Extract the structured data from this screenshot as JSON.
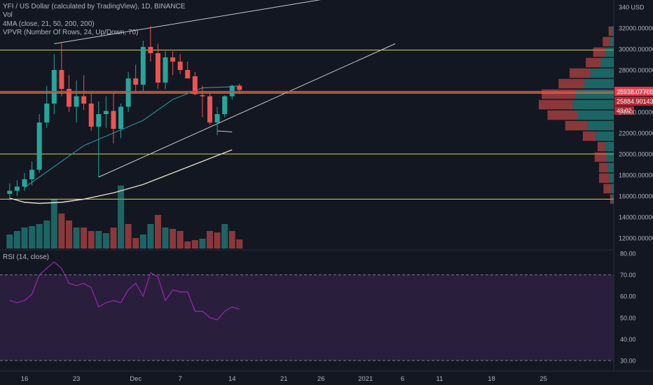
{
  "header": {
    "symbol_line": "YFI / US Dollar (calculated by TradingView), 1D, BINANCE",
    "vol_label": "Vol",
    "ma_label": "4MA (close, 21, 50, 200, 200)",
    "vpvr_label": "VPVR (Number Of Rows, 24, Up/Down, 70)",
    "rsi_label": "RSI (14, close)"
  },
  "colors": {
    "background": "#131722",
    "up": "#26a69a",
    "down": "#ef5350",
    "ma21": "#2a8c94",
    "ma50": "#e6dcc8",
    "hline": "#d6d14a",
    "price_line": "#f23645",
    "trend": "#c8c8c8",
    "rsi": "#9c27b0",
    "rsi_band": "#2a1e3d",
    "axis_text": "#b2b5be"
  },
  "chart_data": [
    {
      "type": "candlestick",
      "title": "YFI / US Dollar (calculated by TradingView), 1D, BINANCE",
      "y_axis_labels": [
        "340 USD",
        "32000.00000",
        "30000.00000",
        "28000.00000",
        "26000.00000",
        "24000.00000",
        "22000.00000",
        "20000.00000",
        "18000.00000",
        "16000.00000",
        "14000.00000",
        "12000.00000"
      ],
      "y_axis_top_label": "340 USD",
      "ylim": [
        11000,
        34500
      ],
      "x_axis_labels": [
        "16",
        "23",
        "Dec",
        "7",
        "14",
        "21",
        "26",
        "2021",
        "6",
        "11",
        "18",
        "25"
      ],
      "x_axis_days": [
        0,
        7,
        15,
        21,
        28,
        35,
        40,
        46,
        51,
        56,
        63,
        70
      ],
      "candles": [
        {
          "d": -2,
          "o": 16200,
          "h": 17200,
          "l": 15600,
          "c": 16500
        },
        {
          "d": -1,
          "o": 16500,
          "h": 17500,
          "l": 16000,
          "c": 16900
        },
        {
          "d": 0,
          "o": 16900,
          "h": 18200,
          "l": 16500,
          "c": 17600
        },
        {
          "d": 1,
          "o": 17600,
          "h": 19300,
          "l": 17000,
          "c": 18500
        },
        {
          "d": 2,
          "o": 18500,
          "h": 23800,
          "l": 18200,
          "c": 23000
        },
        {
          "d": 3,
          "o": 23000,
          "h": 26500,
          "l": 22500,
          "c": 24800
        },
        {
          "d": 4,
          "o": 24800,
          "h": 29500,
          "l": 23800,
          "c": 28000
        },
        {
          "d": 5,
          "o": 28000,
          "h": 30700,
          "l": 25500,
          "c": 26200
        },
        {
          "d": 6,
          "o": 26200,
          "h": 27500,
          "l": 24000,
          "c": 24500
        },
        {
          "d": 7,
          "o": 24500,
          "h": 27000,
          "l": 23000,
          "c": 25500
        },
        {
          "d": 8,
          "o": 25500,
          "h": 27500,
          "l": 24200,
          "c": 24800
        },
        {
          "d": 9,
          "o": 24800,
          "h": 25800,
          "l": 22200,
          "c": 22600
        },
        {
          "d": 10,
          "o": 22600,
          "h": 25000,
          "l": 17800,
          "c": 23800
        },
        {
          "d": 11,
          "o": 23800,
          "h": 25500,
          "l": 22500,
          "c": 24100
        },
        {
          "d": 12,
          "o": 24100,
          "h": 25800,
          "l": 21000,
          "c": 22400
        },
        {
          "d": 13,
          "o": 22400,
          "h": 24800,
          "l": 21500,
          "c": 24500
        },
        {
          "d": 14,
          "o": 24500,
          "h": 27800,
          "l": 24000,
          "c": 27200
        },
        {
          "d": 15,
          "o": 27200,
          "h": 28500,
          "l": 25800,
          "c": 26600
        },
        {
          "d": 16,
          "o": 26600,
          "h": 30800,
          "l": 26000,
          "c": 30200
        },
        {
          "d": 17,
          "o": 30200,
          "h": 32200,
          "l": 28800,
          "c": 29600
        },
        {
          "d": 18,
          "o": 29600,
          "h": 30500,
          "l": 26200,
          "c": 26800
        },
        {
          "d": 19,
          "o": 26800,
          "h": 29800,
          "l": 26200,
          "c": 29200
        },
        {
          "d": 20,
          "o": 29200,
          "h": 29800,
          "l": 27500,
          "c": 28800
        },
        {
          "d": 21,
          "o": 28800,
          "h": 29500,
          "l": 27600,
          "c": 28000
        },
        {
          "d": 22,
          "o": 28000,
          "h": 28800,
          "l": 27200,
          "c": 27200
        },
        {
          "d": 23,
          "o": 27400,
          "h": 27800,
          "l": 25600,
          "c": 25700
        },
        {
          "d": 24,
          "o": 25600,
          "h": 26500,
          "l": 23500,
          "c": 25500
        },
        {
          "d": 25,
          "o": 25500,
          "h": 25800,
          "l": 22800,
          "c": 23000
        },
        {
          "d": 26,
          "o": 23000,
          "h": 24500,
          "l": 21800,
          "c": 23800
        },
        {
          "d": 27,
          "o": 23800,
          "h": 25600,
          "l": 23500,
          "c": 25500
        },
        {
          "d": 28,
          "o": 25500,
          "h": 26600,
          "l": 25200,
          "c": 26500
        },
        {
          "d": 29,
          "o": 26500,
          "h": 26700,
          "l": 25700,
          "c": 26100
        }
      ],
      "ma21": [
        [
          0,
          16800
        ],
        [
          4,
          18800
        ],
        [
          8,
          20800
        ],
        [
          12,
          22000
        ],
        [
          16,
          23200
        ],
        [
          20,
          25200
        ],
        [
          24,
          26300
        ],
        [
          28,
          26400
        ],
        [
          29,
          26500
        ]
      ],
      "ma50": [
        [
          -2,
          15800
        ],
        [
          0,
          15400
        ],
        [
          2,
          15300
        ],
        [
          5,
          15400
        ],
        [
          8,
          15700
        ],
        [
          12,
          16300
        ],
        [
          16,
          17100
        ],
        [
          20,
          18200
        ],
        [
          24,
          19300
        ],
        [
          28,
          20400
        ]
      ],
      "horizontal_lines": [
        29900,
        25800,
        20000,
        15700
      ],
      "trendlines": [
        [
          [
            4,
            30500
          ],
          [
            40,
            34700
          ]
        ],
        [
          [
            10,
            17800
          ],
          [
            50,
            30500
          ]
        ],
        [
          [
            26,
            22200
          ],
          [
            28,
            22100
          ]
        ]
      ],
      "current_price": 25938.07705,
      "current_price_label": "25938.07705",
      "marker_price_label": "25884.90143",
      "countdown_label": "43:02",
      "volume": [
        {
          "d": -2,
          "v": 2,
          "dir": "up"
        },
        {
          "d": -1,
          "v": 2.5,
          "dir": "up"
        },
        {
          "d": 0,
          "v": 3,
          "dir": "up"
        },
        {
          "d": 1,
          "v": 3.2,
          "dir": "up"
        },
        {
          "d": 2,
          "v": 3.5,
          "dir": "up"
        },
        {
          "d": 3,
          "v": 4,
          "dir": "up"
        },
        {
          "d": 4,
          "v": 7,
          "dir": "up"
        },
        {
          "d": 5,
          "v": 5,
          "dir": "down"
        },
        {
          "d": 6,
          "v": 4,
          "dir": "down"
        },
        {
          "d": 7,
          "v": 3,
          "dir": "up"
        },
        {
          "d": 8,
          "v": 3,
          "dir": "down"
        },
        {
          "d": 9,
          "v": 2.5,
          "dir": "down"
        },
        {
          "d": 10,
          "v": 2.5,
          "dir": "up"
        },
        {
          "d": 11,
          "v": 2.2,
          "dir": "up"
        },
        {
          "d": 12,
          "v": 3,
          "dir": "down"
        },
        {
          "d": 13,
          "v": 9,
          "dir": "up"
        },
        {
          "d": 14,
          "v": 3.5,
          "dir": "down"
        },
        {
          "d": 15,
          "v": 1.5,
          "dir": "down"
        },
        {
          "d": 16,
          "v": 2,
          "dir": "up"
        },
        {
          "d": 17,
          "v": 3.5,
          "dir": "up"
        },
        {
          "d": 18,
          "v": 4.8,
          "dir": "down"
        },
        {
          "d": 19,
          "v": 3,
          "dir": "up"
        },
        {
          "d": 20,
          "v": 2.8,
          "dir": "down"
        },
        {
          "d": 21,
          "v": 2.5,
          "dir": "down"
        },
        {
          "d": 22,
          "v": 1,
          "dir": "down"
        },
        {
          "d": 23,
          "v": 1.2,
          "dir": "down"
        },
        {
          "d": 24,
          "v": 1.4,
          "dir": "up"
        },
        {
          "d": 25,
          "v": 2.5,
          "dir": "down"
        },
        {
          "d": 26,
          "v": 2.3,
          "dir": "down"
        },
        {
          "d": 27,
          "v": 3.5,
          "dir": "up"
        },
        {
          "d": 28,
          "v": 2.5,
          "dir": "down"
        },
        {
          "d": 29,
          "v": 1.3,
          "dir": "down"
        }
      ],
      "vpvr": [
        {
          "price": 31700,
          "up": 0.02,
          "down": 0.05
        },
        {
          "price": 30700,
          "up": 0.05,
          "down": 0.1
        },
        {
          "price": 29700,
          "up": 0.12,
          "down": 0.16
        },
        {
          "price": 28700,
          "up": 0.18,
          "down": 0.2
        },
        {
          "price": 27700,
          "up": 0.32,
          "down": 0.28
        },
        {
          "price": 26700,
          "up": 0.4,
          "down": 0.35
        },
        {
          "price": 25700,
          "up": 0.52,
          "down": 0.46
        },
        {
          "price": 24700,
          "up": 0.56,
          "down": 0.46
        },
        {
          "price": 23700,
          "up": 0.5,
          "down": 0.4
        },
        {
          "price": 22700,
          "up": 0.36,
          "down": 0.3
        },
        {
          "price": 21700,
          "up": 0.24,
          "down": 0.18
        },
        {
          "price": 20700,
          "up": 0.12,
          "down": 0.1
        },
        {
          "price": 19700,
          "up": 0.1,
          "down": 0.16
        },
        {
          "price": 18700,
          "up": 0.08,
          "down": 0.12
        },
        {
          "price": 17700,
          "up": 0.06,
          "down": 0.14
        },
        {
          "price": 16700,
          "up": 0.04,
          "down": 0.1
        },
        {
          "price": 15700,
          "up": 0.02,
          "down": 0.03
        }
      ]
    },
    {
      "type": "line",
      "title": "RSI (14, close)",
      "y_axis_labels": [
        "80.00",
        "70.00",
        "60.00",
        "50.00",
        "40.00",
        "30.00"
      ],
      "ylim": [
        27,
        83
      ],
      "band": [
        30,
        70
      ],
      "points": [
        [
          -2,
          58
        ],
        [
          -1,
          57
        ],
        [
          0,
          58
        ],
        [
          1,
          61
        ],
        [
          2,
          70
        ],
        [
          3,
          73
        ],
        [
          4,
          76
        ],
        [
          5,
          73
        ],
        [
          6,
          66
        ],
        [
          7,
          65
        ],
        [
          8,
          66
        ],
        [
          9,
          64
        ],
        [
          10,
          55
        ],
        [
          11,
          57
        ],
        [
          12,
          58
        ],
        [
          13,
          57
        ],
        [
          14,
          63
        ],
        [
          15,
          66
        ],
        [
          16,
          60
        ],
        [
          17,
          71
        ],
        [
          18,
          69
        ],
        [
          19,
          58
        ],
        [
          20,
          63
        ],
        [
          21,
          62
        ],
        [
          22,
          62
        ],
        [
          23,
          53
        ],
        [
          24,
          53
        ],
        [
          25,
          50
        ],
        [
          26,
          49
        ],
        [
          27,
          53
        ],
        [
          28,
          55
        ],
        [
          29,
          54
        ]
      ]
    }
  ]
}
